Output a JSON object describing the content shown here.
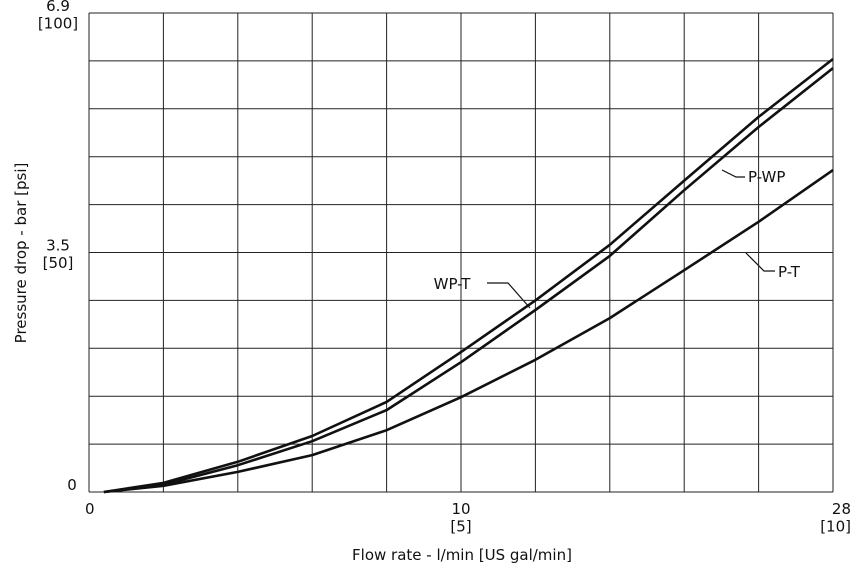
{
  "chart_data": {
    "type": "line",
    "xlabel": "Flow rate - l/min [US gal/min]",
    "ylabel": "Pressure drop - bar [psi]",
    "xlim": [
      0,
      10
    ],
    "ylim": [
      0,
      100
    ],
    "xticks": [
      0,
      {
        "value": 5,
        "label": "10\n[5]"
      },
      {
        "value": 10,
        "label": "28\n[10]"
      }
    ],
    "yticks": [
      0,
      {
        "value": 50,
        "label": "3.5\n[50]"
      },
      {
        "value": 100,
        "label": "6.9\n[100]"
      }
    ],
    "xgrid": [
      0,
      1,
      2,
      3,
      4,
      5,
      6,
      7,
      8,
      9,
      10
    ],
    "ygrid": [
      0,
      10,
      20,
      30,
      40,
      50,
      60,
      70,
      80,
      90,
      100
    ],
    "x": [
      0.2,
      1,
      2,
      3,
      4,
      5,
      6,
      7,
      8,
      9,
      10
    ],
    "series": [
      {
        "name": "WP-T",
        "color": "#111111",
        "values": [
          0,
          1.9,
          6.3,
          11.7,
          18.8,
          29.2,
          40,
          51.6,
          65,
          78.3,
          90.4
        ]
      },
      {
        "name": "P-WP",
        "color": "#111111",
        "values": [
          0,
          1.5,
          5.6,
          10.6,
          17.1,
          27.1,
          38,
          49.3,
          63,
          76.2,
          88.5
        ]
      },
      {
        "name": "P-T",
        "color": "#111111",
        "values": [
          0,
          1.3,
          4.2,
          7.7,
          12.9,
          19.8,
          27.6,
          36.3,
          46.3,
          56.4,
          67.2
        ]
      }
    ],
    "grid": true
  }
}
